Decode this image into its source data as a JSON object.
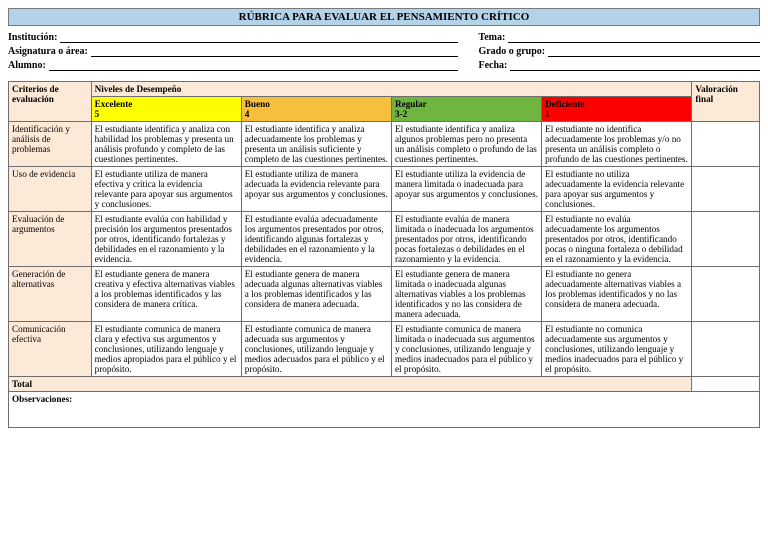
{
  "title": "RÚBRICA PARA EVALUAR EL PENSAMIENTO CRÍTICO",
  "header": {
    "left": [
      {
        "label": "Institución:"
      },
      {
        "label": "Asignatura o área:"
      },
      {
        "label": "Alumno:"
      }
    ],
    "right": [
      {
        "label": "Tema:"
      },
      {
        "label": "Grado o grupo:"
      },
      {
        "label": "Fecha:"
      }
    ]
  },
  "table": {
    "criteria_head": "Criterios de evaluación",
    "niveles_head": "Niveles de Desempeño",
    "valoracion_head": "Valoración final",
    "levels": {
      "exc": {
        "name": "Excelente",
        "num": "5",
        "bg": "#ffff00"
      },
      "bue": {
        "name": "Bueno",
        "num": "4",
        "bg": "#f7bf3e"
      },
      "reg": {
        "name": "Regular",
        "num": "3-2",
        "bg": "#6fb53f"
      },
      "def": {
        "name": "Deficiente",
        "num": "1",
        "bg": "#ff0000"
      }
    },
    "rows": [
      {
        "criterion": "Identificación y análisis de problemas",
        "exc": "El estudiante identifica y analiza con habilidad los problemas y presenta un análisis profundo y completo de las cuestiones pertinentes.",
        "bue": "El estudiante identifica y analiza adecuadamente los problemas y presenta un análisis suficiente y completo de las cuestiones pertinentes.",
        "reg": "El estudiante identifica y analiza algunos problemas pero no presenta un análisis completo o profundo de las cuestiones pertinentes.",
        "def": "El estudiante no identifica adecuadamente los problemas y/o no presenta un análisis completo o profundo de las cuestiones pertinentes."
      },
      {
        "criterion": "Uso de evidencia",
        "exc": "El estudiante utiliza de manera efectiva y crítica la evidencia relevante para apoyar sus argumentos y conclusiones.",
        "bue": "El estudiante utiliza de manera adecuada la evidencia relevante para apoyar sus argumentos y conclusiones.",
        "reg": "El estudiante utiliza la evidencia de manera limitada o inadecuada para apoyar sus argumentos y conclusiones.",
        "def": "El estudiante no utiliza adecuadamente la evidencia relevante para apoyar sus argumentos y conclusiones."
      },
      {
        "criterion": "Evaluación de argumentos",
        "exc": "El estudiante evalúa con habilidad y precisión los argumentos presentados por otros, identificando fortalezas y debilidades en el razonamiento y la evidencia.",
        "bue": "El estudiante evalúa adecuadamente los argumentos presentados por otros, identificando algunas fortalezas y debilidades en el razonamiento y la evidencia.",
        "reg": "El estudiante evalúa de manera limitada o inadecuada los argumentos presentados por otros, identificando pocas fortalezas o debilidades en el razonamiento y la evidencia.",
        "def": "El estudiante no evalúa adecuadamente los argumentos presentados por otros, identificando pocas o ninguna fortaleza o debilidad en el razonamiento y la evidencia."
      },
      {
        "criterion": "Generación de alternativas",
        "exc": "El estudiante genera de manera creativa y efectiva alternativas viables a los problemas identificados y las considera de manera crítica.",
        "bue": "El estudiante genera de manera adecuada algunas alternativas viables a los problemas identificados y las considera de manera adecuada.",
        "reg": "El estudiante genera de manera limitada o inadecuada algunas alternativas viables a los problemas identificados y no las considera de manera adecuada.",
        "def": "El estudiante no genera adecuadamente alternativas viables a los problemas identificados y no las considera de manera adecuada."
      },
      {
        "criterion": "Comunicación efectiva",
        "exc": "El estudiante comunica de manera clara y efectiva sus argumentos y conclusiones, utilizando lenguaje y medios apropiados para el público y el propósito.",
        "bue": "El estudiante comunica de manera adecuada sus argumentos y conclusiones, utilizando lenguaje y medios adecuados para el público y el propósito.",
        "reg": "El estudiante comunica de manera limitada o inadecuada sus argumentos y conclusiones, utilizando lenguaje y medios inadecuados para el público y el propósito.",
        "def": "El estudiante no comunica adecuadamente sus argumentos y conclusiones, utilizando lenguaje y medios inadecuados para el público y el propósito."
      }
    ],
    "total_label": "Total",
    "obs_label": "Observaciones:"
  }
}
